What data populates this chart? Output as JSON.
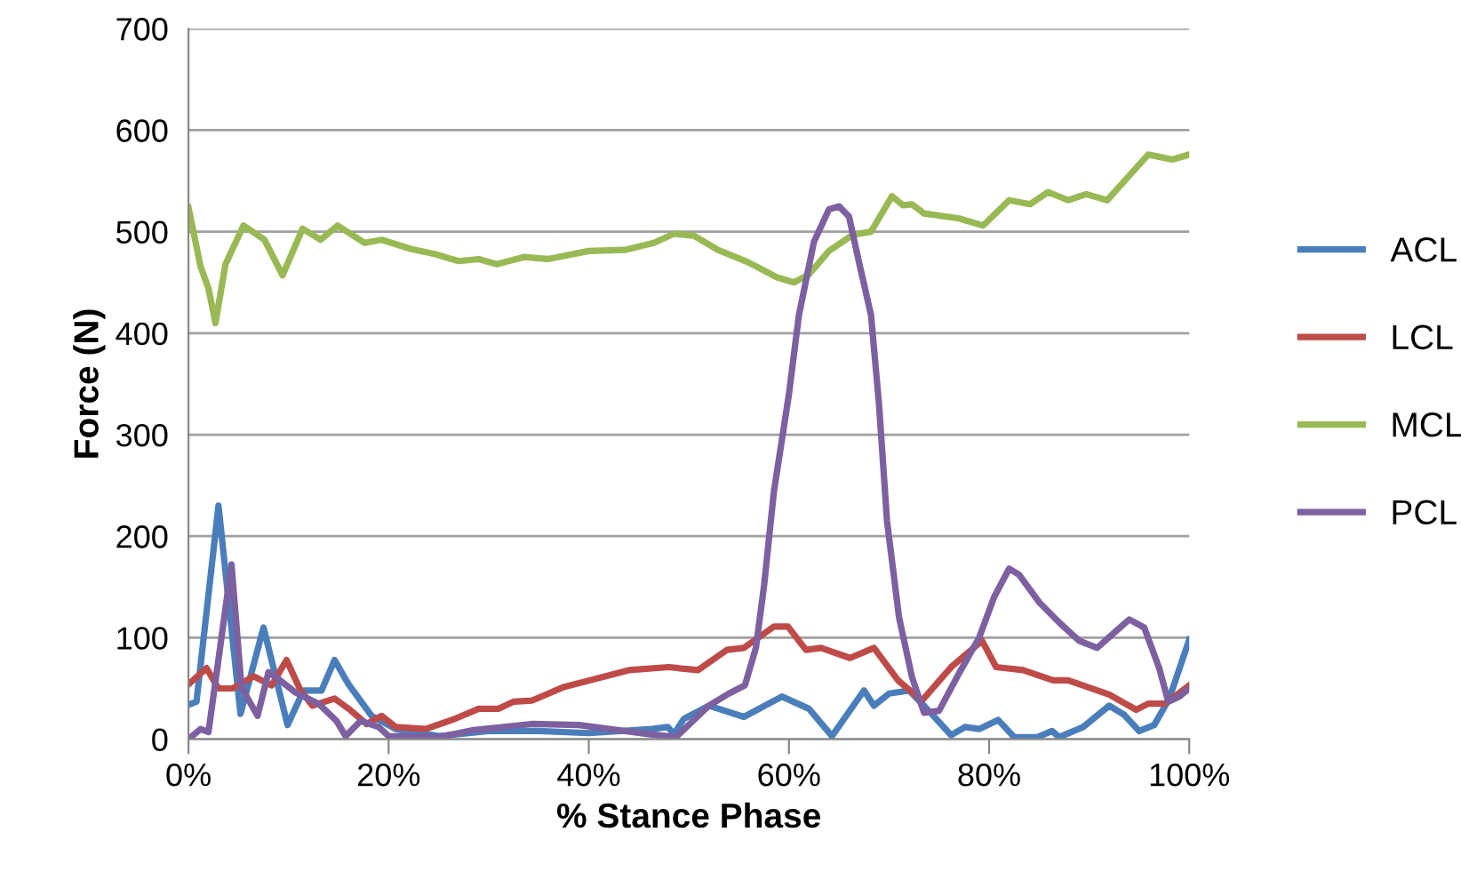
{
  "chart_data": {
    "type": "line",
    "xlabel": "% Stance Phase",
    "ylabel": "Force (N)",
    "xlim": [
      0,
      100
    ],
    "ylim": [
      0,
      700
    ],
    "xticks": [
      {
        "value": 0,
        "label": "0%"
      },
      {
        "value": 20,
        "label": "20%"
      },
      {
        "value": 40,
        "label": "40%"
      },
      {
        "value": 60,
        "label": "60%"
      },
      {
        "value": 80,
        "label": "80%"
      },
      {
        "value": 100,
        "label": "100%"
      }
    ],
    "yticks": [
      0,
      100,
      200,
      300,
      400,
      500,
      600,
      700
    ],
    "grid": "y",
    "legend": "right",
    "marker": "none",
    "line_style": "solid",
    "series": [
      {
        "name": "ACL",
        "color": "#4a7ebb",
        "x": [
          0,
          0.8,
          3,
          5.2,
          7.5,
          9.9,
          11.5,
          13.3,
          14.6,
          16,
          18.3,
          20.7,
          25,
          30,
          35,
          40,
          46.3,
          47.9,
          48.5,
          49.5,
          52,
          55.5,
          59.3,
          62,
          64.3,
          67.5,
          68.5,
          70,
          72,
          73.5,
          76.2,
          77.6,
          79,
          80.9,
          82.5,
          84.8,
          86.3,
          87,
          89.4,
          92,
          93.5,
          95,
          96.5,
          98,
          100
        ],
        "values": [
          34,
          37,
          230,
          25,
          110,
          14,
          48,
          48,
          78,
          54,
          23,
          10,
          3,
          8,
          8,
          6,
          10,
          12,
          5,
          20,
          33,
          22,
          42,
          30,
          3,
          48,
          33,
          45,
          48,
          33,
          4,
          12,
          10,
          19,
          2,
          2,
          8,
          2,
          12,
          33,
          24,
          8,
          14,
          40,
          98
        ]
      },
      {
        "name": "LCL",
        "color": "#be4b48",
        "x": [
          0,
          1.8,
          3,
          4.4,
          6.5,
          8.3,
          9.8,
          11.2,
          12.4,
          14.6,
          16,
          17.8,
          19.3,
          20.7,
          23.7,
          26.6,
          29,
          31,
          32.5,
          34.3,
          37.4,
          44,
          48,
          50.9,
          53.8,
          55.5,
          58.5,
          59.9,
          61.7,
          63.2,
          66.1,
          68.5,
          70.9,
          73.3,
          76.2,
          79.3,
          80.7,
          83.4,
          86.4,
          87.9,
          92,
          94.7,
          95.9,
          97.6,
          100
        ],
        "values": [
          54,
          70,
          50,
          50,
          62,
          53,
          78,
          48,
          33,
          40,
          30,
          15,
          23,
          12,
          10,
          20,
          30,
          30,
          37,
          38,
          51,
          68,
          71,
          68,
          88,
          90,
          111,
          111,
          88,
          90,
          80,
          90,
          58,
          38,
          71,
          97,
          71,
          68,
          58,
          58,
          44,
          29,
          35,
          35,
          53
        ]
      },
      {
        "name": "MCL",
        "color": "#98b954",
        "x": [
          0,
          1.2,
          2,
          2.7,
          3.7,
          5.5,
          7.6,
          9.4,
          11.4,
          13.2,
          14.9,
          17.6,
          19.3,
          22.2,
          24.6,
          27,
          29,
          30.8,
          33.5,
          35.9,
          40,
          43.6,
          46.5,
          48.5,
          50.5,
          52.9,
          55.9,
          58.8,
          60.5,
          62,
          64,
          66.4,
          68.2,
          70.3,
          71.4,
          72.3,
          73.5,
          77,
          79.4,
          82,
          84.1,
          85.9,
          87.9,
          89.7,
          91.8,
          95.9,
          98.3,
          100
        ],
        "values": [
          524,
          466,
          444,
          410,
          468,
          506,
          492,
          457,
          503,
          492,
          506,
          489,
          492,
          483,
          478,
          471,
          473,
          468,
          475,
          473,
          481,
          482,
          489,
          498,
          496,
          482,
          470,
          455,
          450,
          458,
          481,
          497,
          500,
          535,
          526,
          527,
          518,
          513,
          506,
          531,
          527,
          539,
          531,
          537,
          531,
          576,
          571,
          576
        ]
      },
      {
        "name": "PCL",
        "color": "#7d60a0",
        "x": [
          0,
          1.2,
          2,
          4.3,
          5.3,
          6.9,
          8,
          8.9,
          10.7,
          13,
          14.8,
          15.7,
          17.2,
          19,
          20,
          25,
          28.5,
          34.3,
          39,
          46,
          48.7,
          52,
          54,
          55.6,
          56.7,
          57.5,
          58.5,
          60,
          61,
          62.5,
          64,
          65,
          66,
          67,
          68.2,
          69,
          69.8,
          71,
          72.3,
          73.5,
          75,
          77,
          79,
          80.5,
          82,
          83,
          85,
          87,
          89,
          90.8,
          92.5,
          94,
          95.5,
          97,
          97.9,
          99,
          100
        ],
        "values": [
          0,
          10,
          7,
          172,
          51,
          23,
          66,
          60,
          46,
          35,
          18,
          3,
          18,
          12,
          3,
          2,
          9,
          15,
          14,
          5,
          2,
          33,
          45,
          53,
          90,
          150,
          244,
          340,
          418,
          490,
          522,
          525,
          515,
          470,
          418,
          330,
          215,
          120,
          61,
          26,
          28,
          65,
          100,
          140,
          168,
          162,
          135,
          115,
          97,
          90,
          105,
          118,
          110,
          70,
          37,
          42,
          50
        ]
      }
    ]
  }
}
